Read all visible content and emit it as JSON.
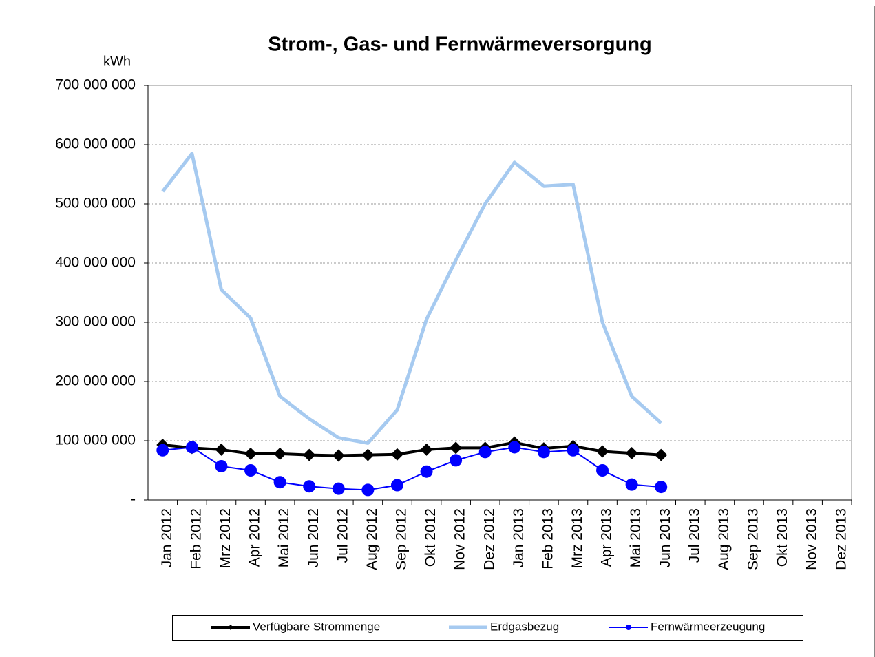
{
  "chart_data": {
    "type": "line",
    "title": "Strom-, Gas- und Fernwärmeversorgung",
    "y_label": "kWh",
    "categories": [
      "Jan 2012",
      "Feb 2012",
      "Mrz 2012",
      "Apr 2012",
      "Mai 2012",
      "Jun 2012",
      "Jul 2012",
      "Aug 2012",
      "Sep 2012",
      "Okt 2012",
      "Nov 2012",
      "Dez 2012",
      "Jan 2013",
      "Feb 2013",
      "Mrz 2013",
      "Apr 2013",
      "Mai 2013",
      "Jun 2013",
      "Jul 2013",
      "Aug 2013",
      "Sep 2013",
      "Okt 2013",
      "Nov 2013",
      "Dez 2013"
    ],
    "series": [
      {
        "name": "Verfügbare Strommenge",
        "color": "#000000",
        "marker": "diamond",
        "values": [
          93000000,
          88000000,
          85000000,
          78000000,
          78000000,
          76000000,
          75000000,
          76000000,
          77000000,
          85000000,
          88000000,
          88000000,
          97000000,
          87000000,
          91000000,
          82000000,
          79000000,
          76000000,
          null,
          null,
          null,
          null,
          null,
          null
        ]
      },
      {
        "name": "Erdgasbezug",
        "color": "#a6caf0",
        "marker": "none",
        "values": [
          521000000,
          585000000,
          355000000,
          307000000,
          175000000,
          137000000,
          105000000,
          96000000,
          152000000,
          305000000,
          405000000,
          500000000,
          570000000,
          530000000,
          533000000,
          300000000,
          175000000,
          130000000,
          null,
          null,
          null,
          null,
          null,
          null
        ]
      },
      {
        "name": "Fernwärmeerzeugung",
        "color": "#0000ff",
        "marker": "circle",
        "values": [
          84000000,
          89000000,
          57000000,
          50000000,
          30000000,
          23000000,
          19000000,
          17000000,
          25000000,
          48000000,
          67000000,
          81000000,
          89000000,
          81000000,
          84000000,
          50000000,
          26000000,
          22000000,
          null,
          null,
          null,
          null,
          null,
          null
        ]
      }
    ],
    "ylim": [
      0,
      700000000
    ],
    "yticks": [
      {
        "value": 0,
        "label": "-"
      },
      {
        "value": 100000000,
        "label": "100 000 000"
      },
      {
        "value": 200000000,
        "label": "200 000 000"
      },
      {
        "value": 300000000,
        "label": "300 000 000"
      },
      {
        "value": 400000000,
        "label": "400 000 000"
      },
      {
        "value": 500000000,
        "label": "500 000 000"
      },
      {
        "value": 600000000,
        "label": "600 000 000"
      },
      {
        "value": 700000000,
        "label": "700 000 000"
      }
    ],
    "grid": true,
    "legend": "bottom"
  }
}
